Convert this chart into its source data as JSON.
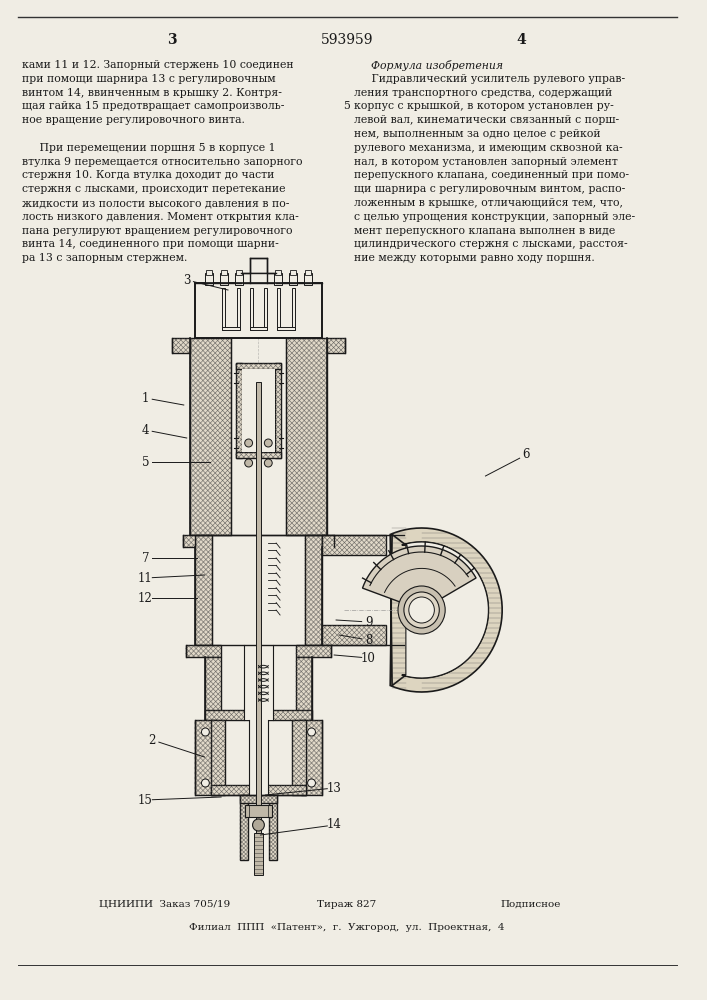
{
  "page_number_left": "3",
  "patent_number": "593959",
  "page_number_right": "4",
  "left_column_text": [
    "ками 11 и 12. Запорный стержень 10 соединен",
    "при помощи шарнира 13 с регулировочным",
    "винтом 14, ввинченным в крышку 2. Контря-",
    "щая гайка 15 предотвращает самопроизволь-",
    "ное вращение регулировочного винта.",
    "",
    "     При перемещении поршня 5 в корпусе 1",
    "втулка 9 перемещается относительно запорного",
    "стержня 10. Когда втулка доходит до части",
    "стержня с лысками, происходит перетекание",
    "жидкости из полости высокого давления в по-",
    "лость низкого давления. Момент открытия кла-",
    "пана регулируют вращением регулировочного",
    "винта 14, соединенного при помощи шарни-",
    "ра 13 с запорным стержнем."
  ],
  "right_column_header": "Формула изобретения",
  "right_column_text": [
    "     Гидравлический усилитель рулевого управ-",
    "ления транспортного средства, содержащий",
    "корпус с крышкой, в котором установлен ру-",
    "левой вал, кинематически связанный с порш-",
    "нем, выполненным за одно целое с рейкой",
    "рулевого механизма, и имеющим сквозной ка-",
    "нал, в котором установлен запорный элемент",
    "перепускного клапана, соединенный при помо-",
    "щи шарнира с регулировочным винтом, распо-",
    "ложенным в крышке, отличающийся тем, что,",
    "с целью упрощения конструкции, запорный эле-",
    "мент перепускного клапана выполнен в виде",
    "цилиндрического стержня с лысками, расстоя-",
    "ние между которыми равно ходу поршня."
  ],
  "formula_number": "5",
  "bottom_left": "ЦНИИПИ  Заказ 705/19",
  "bottom_center": "Тираж 827",
  "bottom_right": "Подписное",
  "bottom_address": "Филиал  ППП  «Патент»,  г.  Ужгород,  ул.  Проектная,  4",
  "bg_color": "#f0ede4",
  "text_color": "#1a1a1a",
  "hatch_color": "#555555",
  "draw_color": "#1a1a1a"
}
